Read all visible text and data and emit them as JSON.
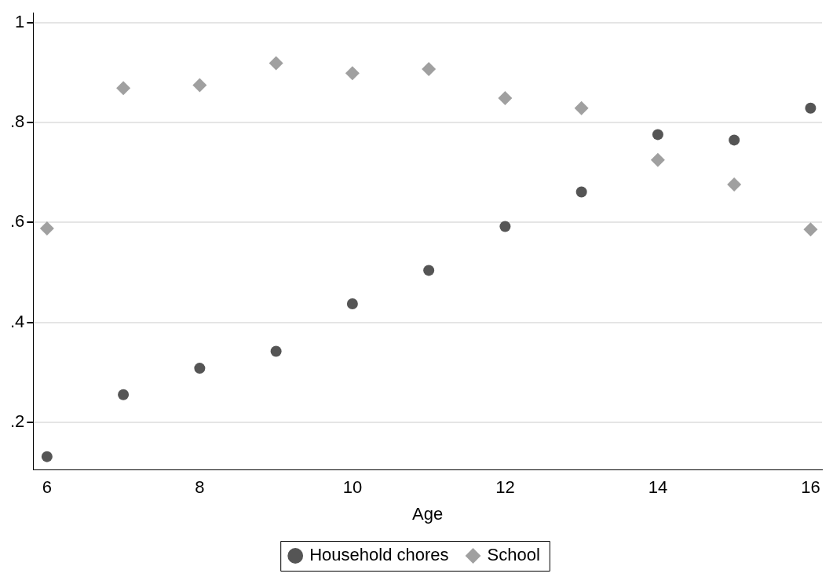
{
  "chart_data": {
    "type": "scatter",
    "xlabel": "Age",
    "x": [
      6,
      7,
      8,
      9,
      10,
      11,
      12,
      13,
      14,
      15,
      16
    ],
    "series": [
      {
        "name": "Household chores",
        "color": "#555555",
        "marker": "circle",
        "values": [
          0.131,
          0.255,
          0.308,
          0.342,
          0.437,
          0.504,
          0.592,
          0.661,
          0.776,
          0.765,
          0.829
        ]
      },
      {
        "name": "School",
        "color": "#a0a0a0",
        "marker": "diamond",
        "values": [
          0.588,
          0.869,
          0.875,
          0.919,
          0.899,
          0.907,
          0.849,
          0.829,
          0.725,
          0.676,
          0.586
        ]
      }
    ],
    "xlim": [
      5.82,
      16.15
    ],
    "xticks": [
      6,
      8,
      10,
      12,
      14,
      16
    ],
    "ylim": [
      0.105,
      1.02
    ],
    "yticks": [
      {
        "value": 0.2,
        "label": ".2"
      },
      {
        "value": 0.4,
        "label": ".4"
      },
      {
        "value": 0.6,
        "label": ".6"
      },
      {
        "value": 0.8,
        "label": ".8"
      },
      {
        "value": 1,
        "label": "1"
      }
    ],
    "grid": "y",
    "legend": "bottom"
  }
}
